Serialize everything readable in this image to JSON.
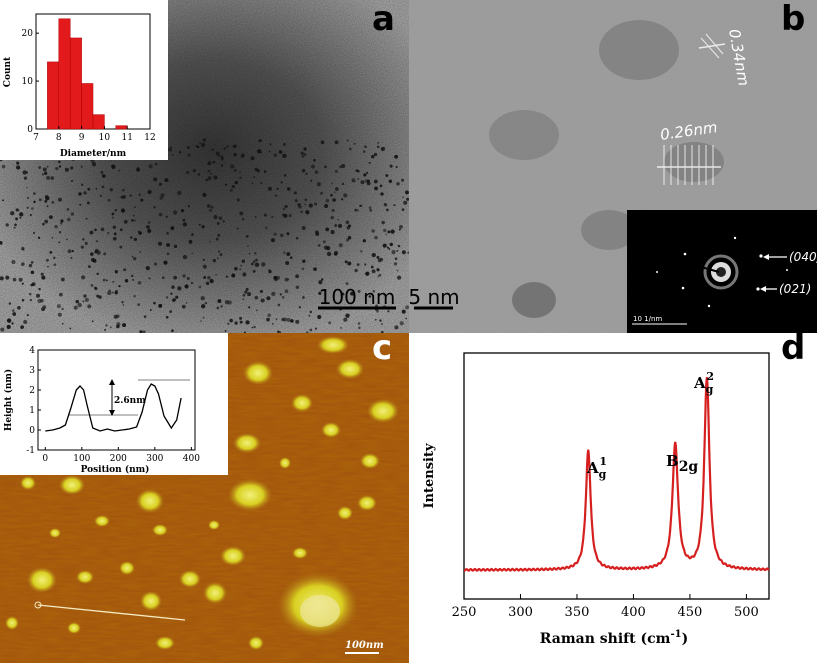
{
  "panels": {
    "a": {
      "letter": "a",
      "scale_bar": "100 nm",
      "inset_histogram": {
        "xlabel": "Diameter/nm",
        "ylabel": "Count",
        "x_ticks": [
          "7",
          "8",
          "9",
          "10",
          "11",
          "12"
        ],
        "y_ticks": [
          "0",
          "10",
          "20"
        ]
      }
    },
    "b": {
      "letter": "b",
      "scale_bar": "5 nm",
      "lattice_1": "0.34nm",
      "lattice_2": "0.26nm",
      "saed": {
        "ring_1": "(040)",
        "ring_2": "(021)",
        "scale": "10 1/nm"
      }
    },
    "c": {
      "letter": "c",
      "scale_bar": "100nm",
      "inset_profile": {
        "xlabel": "Position (nm)",
        "ylabel": "Height (nm)",
        "x_ticks": [
          "0",
          "100",
          "200",
          "300",
          "400"
        ],
        "y_ticks": [
          "-1",
          "0",
          "1",
          "2",
          "3",
          "4"
        ],
        "annotation": "2.6nm"
      }
    },
    "d": {
      "letter": "d",
      "raman": {
        "xlabel_main": "Raman shift (cm",
        "xlabel_sup": "-1",
        "xlabel_end": ")",
        "ylabel": "Intensity",
        "x_ticks": [
          "250",
          "300",
          "350",
          "400",
          "450",
          "500"
        ],
        "peak_1": {
          "base": "A",
          "sub": "g",
          "sup": "1"
        },
        "peak_2": {
          "base": "B",
          "sub": "2g"
        },
        "peak_3": {
          "base": "A",
          "sub": "g",
          "sup": "2"
        }
      }
    }
  },
  "chart_data": [
    {
      "type": "bar",
      "xlabel": "Diameter/nm",
      "ylabel": "Count",
      "xlim": [
        7,
        12
      ],
      "ylim": [
        0,
        24
      ],
      "bin_centers": [
        7.75,
        8.25,
        8.75,
        9.25,
        9.75,
        10.25,
        10.75
      ],
      "values": [
        14,
        23,
        19,
        9.5,
        3,
        0,
        0.7
      ],
      "color": "#e31a1c"
    },
    {
      "type": "line",
      "xlabel": "Position (nm)",
      "ylabel": "Height (nm)",
      "xlim": [
        -20,
        410
      ],
      "ylim": [
        -1,
        4
      ],
      "x": [
        0,
        20,
        40,
        55,
        70,
        85,
        95,
        105,
        115,
        130,
        150,
        170,
        190,
        210,
        230,
        250,
        265,
        280,
        290,
        300,
        310,
        325,
        345,
        360,
        372
      ],
      "y": [
        -0.05,
        0.0,
        0.1,
        0.25,
        1.1,
        2.0,
        2.2,
        2.0,
        1.2,
        0.1,
        -0.05,
        0.05,
        -0.05,
        0.0,
        0.05,
        0.15,
        0.9,
        2.0,
        2.3,
        2.2,
        1.8,
        0.7,
        0.1,
        0.5,
        1.6
      ],
      "color": "#000000"
    },
    {
      "type": "line",
      "xlabel": "Raman shift (cm-1)",
      "ylabel": "Intensity",
      "xlim": [
        250,
        520
      ],
      "peaks": [
        {
          "label": "Ag1",
          "x": 360,
          "height": 0.63,
          "width": 2.6
        },
        {
          "label": "B2g",
          "x": 437,
          "height": 0.66,
          "width": 3.0
        },
        {
          "label": "Ag2",
          "x": 465,
          "height": 1.0,
          "width": 2.7
        }
      ],
      "baseline": 0.02,
      "color": "#d62020"
    }
  ]
}
